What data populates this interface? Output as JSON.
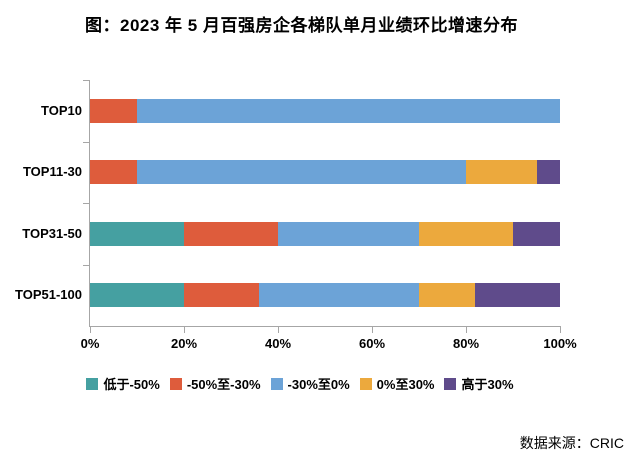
{
  "title": "图：2023 年 5 月百强房企各梯队单月业绩环比增速分布",
  "footer": {
    "source": "数据来源：CRIC"
  },
  "colors": {
    "axis": "#a6a6a6",
    "background": "#ffffff",
    "text": "#000000"
  },
  "chart_data": {
    "type": "bar",
    "orientation": "horizontal",
    "stacked": true,
    "unit": "%",
    "categories": [
      "TOP10",
      "TOP11-30",
      "TOP31-50",
      "TOP51-100"
    ],
    "series": [
      {
        "name": "低于-50%",
        "color": "#45A0A1",
        "values": [
          0,
          0,
          20,
          20
        ]
      },
      {
        "name": "-50%至-30%",
        "color": "#DE5C3C",
        "values": [
          10,
          10,
          20,
          16
        ]
      },
      {
        "name": "-30%至0%",
        "color": "#6CA3D7",
        "values": [
          90,
          70,
          30,
          34
        ]
      },
      {
        "name": "0%至30%",
        "color": "#ECA93D",
        "values": [
          0,
          15,
          20,
          12
        ]
      },
      {
        "name": "高于30%",
        "color": "#5F4B8B",
        "values": [
          0,
          5,
          10,
          18
        ]
      }
    ],
    "xlim": [
      0,
      100
    ],
    "x_ticks": [
      "0%",
      "20%",
      "40%",
      "60%",
      "80%",
      "100%"
    ],
    "grid": false,
    "legend_position": "bottom"
  }
}
